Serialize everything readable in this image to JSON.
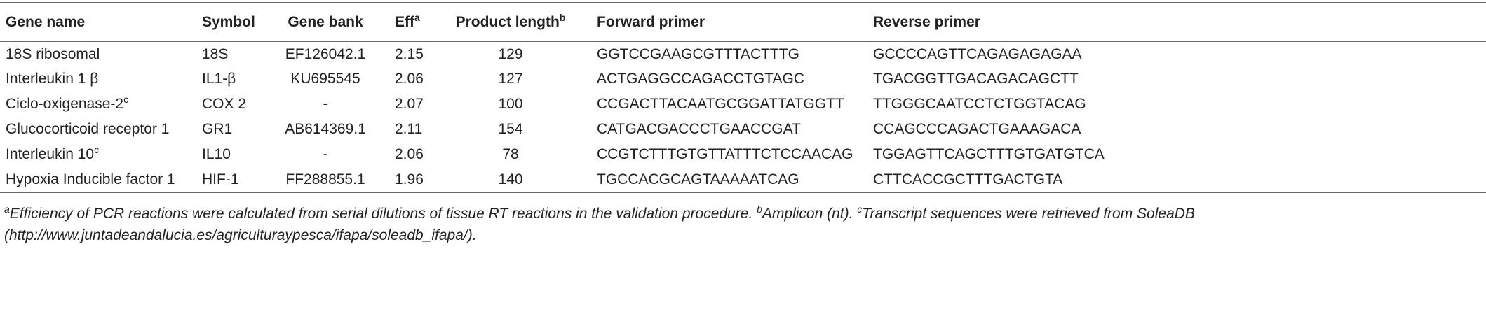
{
  "table": {
    "header": [
      "Gene name",
      "Symbol",
      "Gene bank",
      {
        "text": "Eff",
        "sup": "a"
      },
      {
        "text": "Product length",
        "sup": "b"
      },
      "Forward primer",
      "Reverse primer"
    ],
    "rows": [
      [
        "18S ribosomal",
        "18S",
        "EF126042.1",
        "2.15",
        "129",
        "GGTCCGAAGCGTTTACTTTG",
        "GCCCCAGTTCAGAGAGAGAA"
      ],
      [
        "Interleukin 1 β",
        "IL1-β",
        "KU695545",
        "2.06",
        "127",
        "ACTGAGGCCAGACCTGTAGC",
        "TGACGGTTGACAGACAGCTT"
      ],
      [
        {
          "text": "Ciclo-oxigenase-2",
          "sup": "c"
        },
        "COX 2",
        "-",
        "2.07",
        "100",
        "CCGACTTACAATGCGGATTATGGTT",
        "TTGGGCAATCCTCTGGTACAG"
      ],
      [
        "Glucocorticoid receptor 1",
        "GR1",
        "AB614369.1",
        "2.11",
        "154",
        "CATGACGACCCTGAACCGAT",
        "CCAGCCCAGACTGAAAGACA"
      ],
      [
        {
          "text": "Interleukin 10",
          "sup": "c"
        },
        "IL10",
        "-",
        "2.06",
        "78",
        "CCGTCTTTGTGTTATTTCTCCAACAG",
        "TGGAGTTCAGCTTTGTGATGTCA"
      ],
      [
        "Hypoxia Inducible factor 1",
        "HIF-1",
        "FF288855.1",
        "1.96",
        "140",
        "TGCCACGCAGTAAAAATCAG",
        "CTTCACCGCTTTGACTGTA"
      ]
    ]
  },
  "footnotes": [
    {
      "mark": "a",
      "text": "Efficiency of PCR reactions were calculated from serial dilutions of tissue RT reactions in the validation procedure."
    },
    {
      "mark": "b",
      "text": "Amplicon (nt)."
    },
    {
      "mark": "c",
      "text": "Transcript sequences were retrieved from SoleaDB (http://www.juntadeandalucia.es/agriculturaypesca/ifapa/soleadb_ifapa/)."
    }
  ]
}
